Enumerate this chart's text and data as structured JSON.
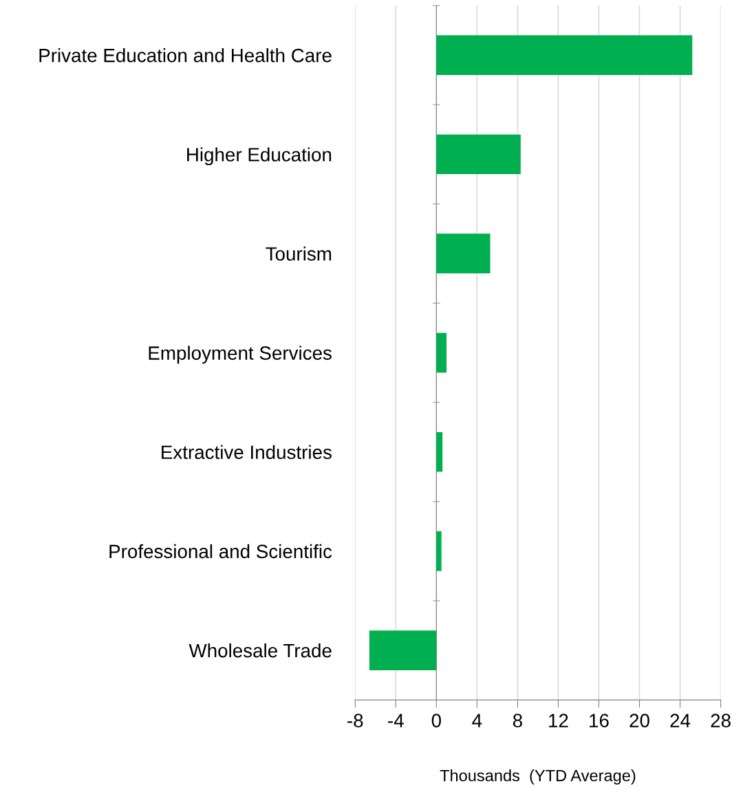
{
  "chart_data": {
    "type": "bar",
    "orientation": "horizontal",
    "categories": [
      "Private Education and Health Care",
      "Higher Education",
      "Tourism",
      "Employment Services",
      "Extractive Industries",
      "Professional and Scientific",
      "Wholesale Trade"
    ],
    "values": [
      25.2,
      8.3,
      5.3,
      1.0,
      0.6,
      0.5,
      -6.6
    ],
    "color": "#00b050",
    "xlim": [
      -8,
      28
    ],
    "xticks": [
      {
        "value": -8,
        "label": "-8"
      },
      {
        "value": -4,
        "label": "-4"
      },
      0,
      4,
      8,
      12,
      16,
      20,
      24,
      28
    ],
    "xlabel": "Thousands  (YTD Average)",
    "grid": "x",
    "legend": false
  }
}
